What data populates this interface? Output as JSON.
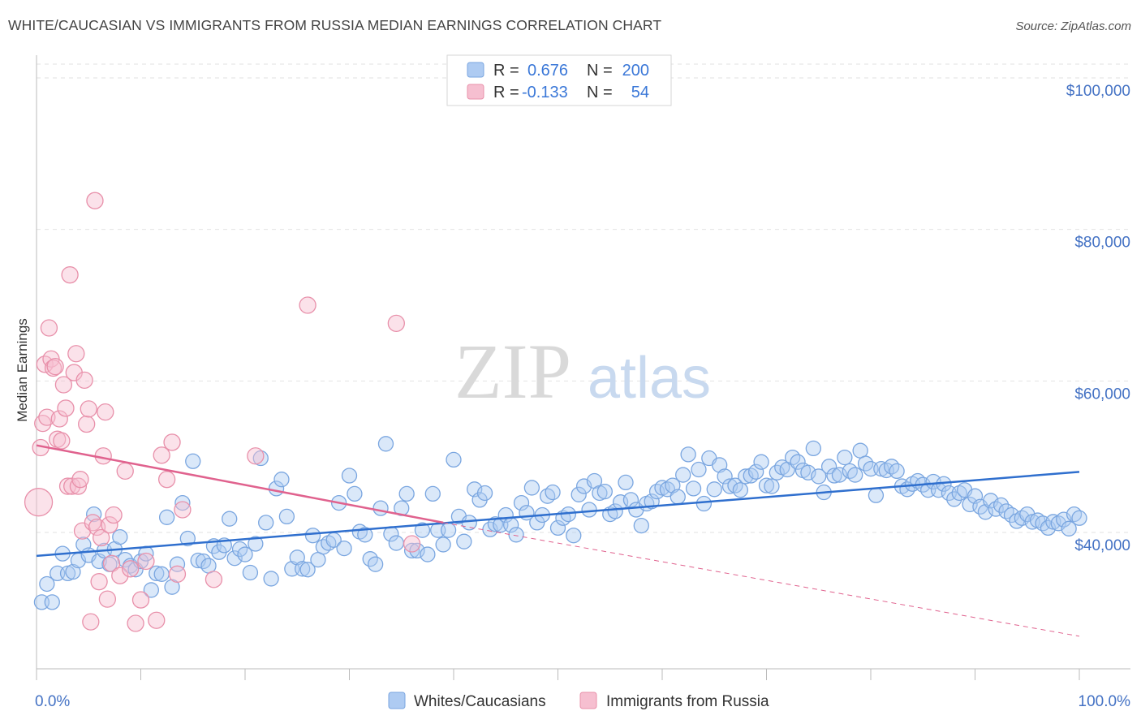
{
  "title": "WHITE/CAUCASIAN VS IMMIGRANTS FROM RUSSIA MEDIAN EARNINGS CORRELATION CHART",
  "source": "Source: ZipAtlas.com",
  "watermark": {
    "zip": "ZIP",
    "atlas": "atlas"
  },
  "chart_data": {
    "type": "scatter",
    "ylabel": "Median Earnings",
    "xlim": [
      0,
      100
    ],
    "ylim": [
      22000,
      103000
    ],
    "x_tick_labels": [
      "0.0%",
      "100.0%"
    ],
    "y_ticks": [
      40000,
      60000,
      80000,
      100000
    ],
    "y_tick_labels": [
      "$40,000",
      "$60,000",
      "$80,000",
      "$100,000"
    ],
    "grid": "horizontal dashed",
    "legend_position": "top-center",
    "stats": [
      {
        "r_label": "R =",
        "r_value": "0.676",
        "n_label": "N =",
        "n_value": "200"
      },
      {
        "r_label": "R =",
        "r_value": "-0.133",
        "n_label": "N =",
        "n_value": "54"
      }
    ],
    "series": [
      {
        "name": "Whites/Caucasians",
        "color": "#7aa6e0",
        "fill": "#aecbf2",
        "line_color": "#2f6fce",
        "trend": {
          "x": [
            0,
            100
          ],
          "y": [
            36900,
            48000
          ]
        },
        "points": [
          [
            0.5,
            30800
          ],
          [
            1,
            33200
          ],
          [
            1.5,
            30800
          ],
          [
            2,
            34600
          ],
          [
            2.5,
            37200
          ],
          [
            3,
            34600
          ],
          [
            3.5,
            34800
          ],
          [
            4,
            36300
          ],
          [
            4.5,
            38400
          ],
          [
            5,
            37000
          ],
          [
            5.5,
            42400
          ],
          [
            6,
            36200
          ],
          [
            6.5,
            37600
          ],
          [
            7,
            35800
          ],
          [
            7.5,
            37800
          ],
          [
            8,
            39400
          ],
          [
            8.5,
            36400
          ],
          [
            9,
            35600
          ],
          [
            9.5,
            35100
          ],
          [
            10,
            36200
          ],
          [
            10.5,
            37200
          ],
          [
            11,
            32400
          ],
          [
            11.5,
            34600
          ],
          [
            12,
            34500
          ],
          [
            12.5,
            42000
          ],
          [
            13,
            32800
          ],
          [
            13.5,
            35800
          ],
          [
            14,
            43900
          ],
          [
            14.5,
            39200
          ],
          [
            15,
            49400
          ],
          [
            15.5,
            36300
          ],
          [
            16,
            36200
          ],
          [
            16.5,
            35600
          ],
          [
            17,
            38200
          ],
          [
            17.5,
            37400
          ],
          [
            18,
            38300
          ],
          [
            18.5,
            41800
          ],
          [
            19,
            36600
          ],
          [
            19.5,
            37800
          ],
          [
            20,
            37100
          ],
          [
            20.5,
            34700
          ],
          [
            21,
            38500
          ],
          [
            21.5,
            49800
          ],
          [
            22,
            41300
          ],
          [
            22.5,
            33900
          ],
          [
            23,
            45800
          ],
          [
            23.5,
            47000
          ],
          [
            24,
            42100
          ],
          [
            24.5,
            35200
          ],
          [
            25,
            36700
          ],
          [
            25.5,
            35200
          ],
          [
            26,
            35100
          ],
          [
            26.5,
            39600
          ],
          [
            27,
            36400
          ],
          [
            27.5,
            38100
          ],
          [
            28,
            38600
          ],
          [
            28.5,
            39000
          ],
          [
            29,
            43900
          ],
          [
            29.5,
            37900
          ],
          [
            30,
            47500
          ],
          [
            30.5,
            45100
          ],
          [
            31,
            40100
          ],
          [
            31.5,
            39700
          ],
          [
            32,
            36500
          ],
          [
            32.5,
            35800
          ],
          [
            33,
            43200
          ],
          [
            33.5,
            51700
          ],
          [
            34,
            39800
          ],
          [
            34.5,
            38600
          ],
          [
            35,
            43200
          ],
          [
            35.5,
            45100
          ],
          [
            36,
            37600
          ],
          [
            36.5,
            37600
          ],
          [
            37,
            40300
          ],
          [
            37.5,
            37100
          ],
          [
            38,
            45100
          ],
          [
            38.5,
            40300
          ],
          [
            39,
            38400
          ],
          [
            39.5,
            40300
          ],
          [
            40,
            49600
          ],
          [
            40.5,
            42100
          ],
          [
            41,
            38800
          ],
          [
            41.5,
            41300
          ],
          [
            42,
            45700
          ],
          [
            42.5,
            44300
          ],
          [
            43,
            45200
          ],
          [
            43.5,
            40400
          ],
          [
            44,
            41100
          ],
          [
            44.5,
            41000
          ],
          [
            45,
            42300
          ],
          [
            45.5,
            41000
          ],
          [
            46,
            39700
          ],
          [
            46.5,
            43900
          ],
          [
            47,
            42600
          ],
          [
            47.5,
            45900
          ],
          [
            48,
            41300
          ],
          [
            48.5,
            42300
          ],
          [
            49,
            44800
          ],
          [
            49.5,
            45300
          ],
          [
            50,
            40600
          ],
          [
            50.5,
            41900
          ],
          [
            51,
            42400
          ],
          [
            51.5,
            39600
          ],
          [
            52,
            45000
          ],
          [
            52.5,
            46100
          ],
          [
            53,
            43000
          ],
          [
            53.5,
            46800
          ],
          [
            54,
            45200
          ],
          [
            54.5,
            45400
          ],
          [
            55,
            42400
          ],
          [
            55.5,
            42800
          ],
          [
            56,
            44000
          ],
          [
            56.5,
            46600
          ],
          [
            57,
            44300
          ],
          [
            57.5,
            43000
          ],
          [
            58,
            40900
          ],
          [
            58.5,
            43800
          ],
          [
            59,
            44100
          ],
          [
            59.5,
            45400
          ],
          [
            60,
            45900
          ],
          [
            60.5,
            45700
          ],
          [
            61,
            46200
          ],
          [
            61.5,
            44700
          ],
          [
            62,
            47600
          ],
          [
            62.5,
            50300
          ],
          [
            63,
            45800
          ],
          [
            63.5,
            48300
          ],
          [
            64,
            43800
          ],
          [
            64.5,
            49800
          ],
          [
            65,
            45700
          ],
          [
            65.5,
            48900
          ],
          [
            66,
            47400
          ],
          [
            66.5,
            46100
          ],
          [
            67,
            46200
          ],
          [
            67.5,
            45600
          ],
          [
            68,
            47400
          ],
          [
            68.5,
            47500
          ],
          [
            69,
            48000
          ],
          [
            69.5,
            49300
          ],
          [
            70,
            46200
          ],
          [
            70.5,
            46100
          ],
          [
            71,
            47900
          ],
          [
            71.5,
            48600
          ],
          [
            72,
            48300
          ],
          [
            72.5,
            49900
          ],
          [
            73,
            49300
          ],
          [
            73.5,
            48200
          ],
          [
            74,
            47900
          ],
          [
            74.5,
            51100
          ],
          [
            75,
            47400
          ],
          [
            75.5,
            45300
          ],
          [
            76,
            48700
          ],
          [
            76.5,
            47500
          ],
          [
            77,
            47600
          ],
          [
            77.5,
            49900
          ],
          [
            78,
            48100
          ],
          [
            78.5,
            47600
          ],
          [
            79,
            50800
          ],
          [
            79.5,
            49100
          ],
          [
            80,
            48400
          ],
          [
            80.5,
            44900
          ],
          [
            81,
            48400
          ],
          [
            81.5,
            48200
          ],
          [
            82,
            48700
          ],
          [
            82.5,
            48100
          ],
          [
            83,
            46100
          ],
          [
            83.5,
            45700
          ],
          [
            84,
            46400
          ],
          [
            84.5,
            46800
          ],
          [
            85,
            46300
          ],
          [
            85.5,
            45600
          ],
          [
            86,
            46700
          ],
          [
            86.5,
            45600
          ],
          [
            87,
            46400
          ],
          [
            87.5,
            45200
          ],
          [
            88,
            44400
          ],
          [
            88.5,
            45200
          ],
          [
            89,
            45600
          ],
          [
            89.5,
            43700
          ],
          [
            90,
            44800
          ],
          [
            90.5,
            43400
          ],
          [
            91,
            42700
          ],
          [
            91.5,
            44200
          ],
          [
            92,
            43100
          ],
          [
            92.5,
            43600
          ],
          [
            93,
            42800
          ],
          [
            93.5,
            42300
          ],
          [
            94,
            41500
          ],
          [
            94.5,
            41900
          ],
          [
            95,
            42400
          ],
          [
            95.5,
            41400
          ],
          [
            96,
            41600
          ],
          [
            96.5,
            41200
          ],
          [
            97,
            40600
          ],
          [
            97.5,
            41400
          ],
          [
            98,
            41200
          ],
          [
            98.5,
            41700
          ],
          [
            99,
            40500
          ],
          [
            99.5,
            42400
          ],
          [
            100,
            41900
          ]
        ]
      },
      {
        "name": "Immigrants from Russia",
        "color": "#e890aa",
        "fill": "#f6bfd0",
        "line_color": "#e0628e",
        "trend": {
          "x": [
            0,
            39
          ],
          "y": [
            51500,
            41300
          ]
        },
        "trend_dashed": {
          "x": [
            39,
            100
          ],
          "y": [
            41300,
            26300
          ]
        },
        "points": [
          [
            0.2,
            44000,
            17
          ],
          [
            0.4,
            51200,
            10
          ],
          [
            0.6,
            54400,
            10
          ],
          [
            0.8,
            62200,
            10
          ],
          [
            1,
            55200,
            10
          ],
          [
            1.2,
            67000,
            10
          ],
          [
            1.4,
            62900,
            10
          ],
          [
            1.6,
            61700,
            10
          ],
          [
            1.8,
            61900,
            10
          ],
          [
            2,
            52300,
            10
          ],
          [
            2.2,
            55000,
            10
          ],
          [
            2.4,
            52100,
            10
          ],
          [
            2.6,
            59500,
            10
          ],
          [
            2.8,
            56400,
            10
          ],
          [
            3,
            46100,
            10
          ],
          [
            3.2,
            74000,
            10
          ],
          [
            3.4,
            46100,
            10
          ],
          [
            3.6,
            61100,
            10
          ],
          [
            3.8,
            63600,
            10
          ],
          [
            4,
            46100,
            10
          ],
          [
            4.2,
            47000,
            10
          ],
          [
            4.4,
            40200,
            10
          ],
          [
            4.6,
            60100,
            10
          ],
          [
            4.8,
            54300,
            10
          ],
          [
            5,
            56300,
            10
          ],
          [
            5.2,
            28200,
            10
          ],
          [
            5.4,
            41300,
            10
          ],
          [
            5.6,
            83800,
            10
          ],
          [
            5.8,
            40700,
            10
          ],
          [
            6,
            33500,
            10
          ],
          [
            6.2,
            39300,
            10
          ],
          [
            6.4,
            50100,
            10
          ],
          [
            6.6,
            55900,
            10
          ],
          [
            6.8,
            31200,
            10
          ],
          [
            7,
            41000,
            10
          ],
          [
            7.2,
            35900,
            10
          ],
          [
            7.4,
            42300,
            10
          ],
          [
            8,
            34300,
            10
          ],
          [
            8.5,
            48100,
            10
          ],
          [
            9,
            35200,
            10
          ],
          [
            9.5,
            28000,
            10
          ],
          [
            10,
            31100,
            10
          ],
          [
            10.5,
            36200,
            10
          ],
          [
            11.5,
            28400,
            10
          ],
          [
            12,
            50200,
            10
          ],
          [
            12.5,
            47000,
            10
          ],
          [
            13,
            51900,
            10
          ],
          [
            13.5,
            34500,
            10
          ],
          [
            14,
            43000,
            10
          ],
          [
            17,
            33800,
            10
          ],
          [
            21,
            50100,
            10
          ],
          [
            26,
            70000,
            10
          ],
          [
            34.5,
            67600,
            10
          ],
          [
            36,
            38500,
            10
          ]
        ]
      }
    ]
  }
}
